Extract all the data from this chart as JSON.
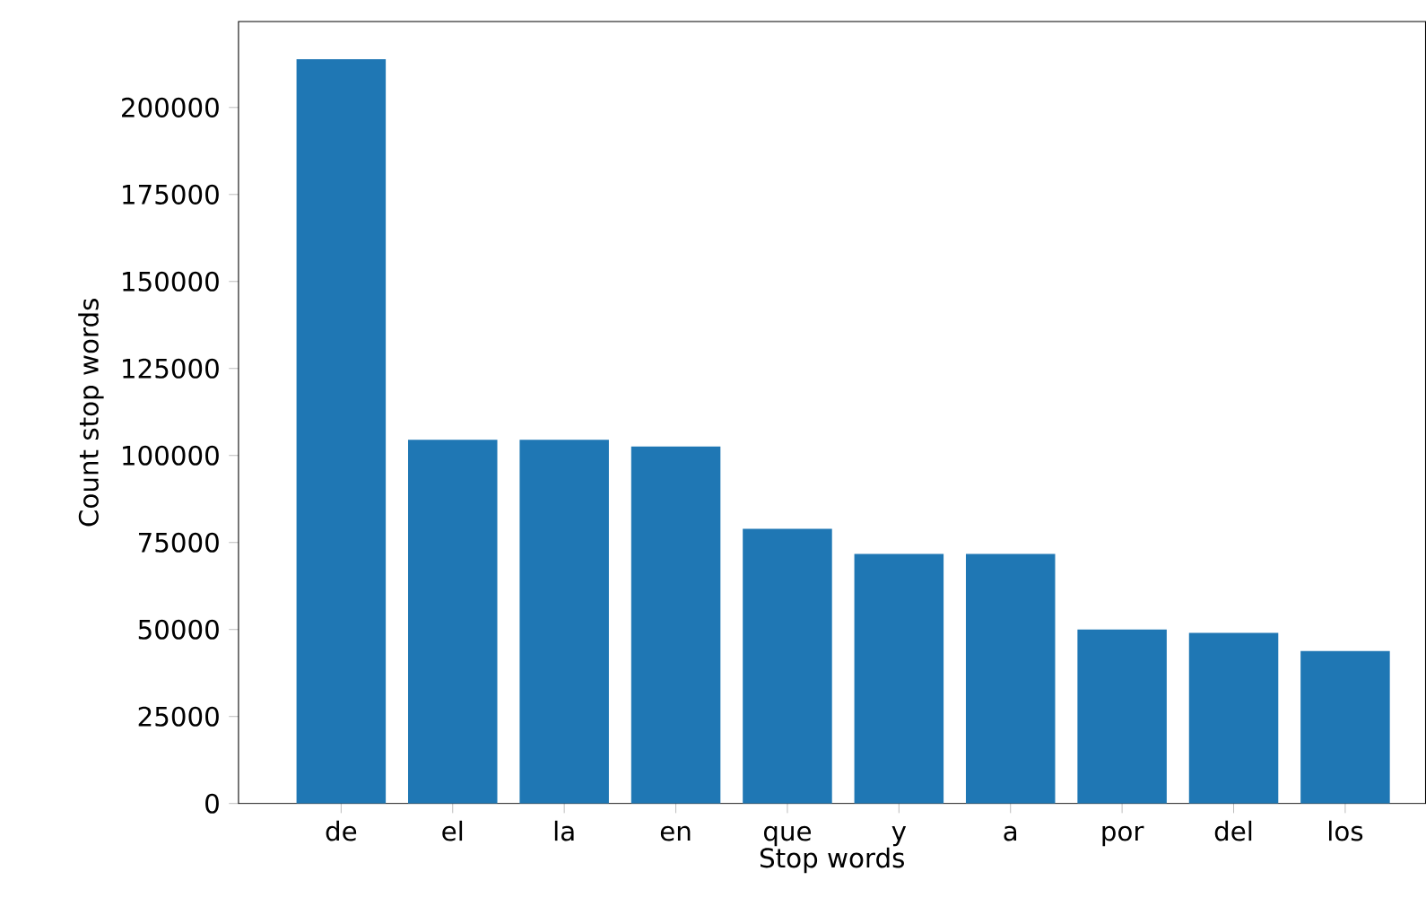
{
  "chart_data": {
    "type": "bar",
    "xlabel": "Stop words",
    "ylabel": "Count stop words",
    "categories": [
      "de",
      "el",
      "la",
      "en",
      "que",
      "y",
      "a",
      "por",
      "del",
      "los"
    ],
    "values": [
      213900,
      104500,
      104500,
      102600,
      78900,
      71700,
      71700,
      50000,
      49000,
      43800
    ],
    "color": "#1f77b4",
    "ylim": [
      0,
      224700
    ],
    "yticks": [
      0,
      25000,
      50000,
      75000,
      100000,
      125000,
      150000,
      175000,
      200000
    ],
    "grid": false
  }
}
